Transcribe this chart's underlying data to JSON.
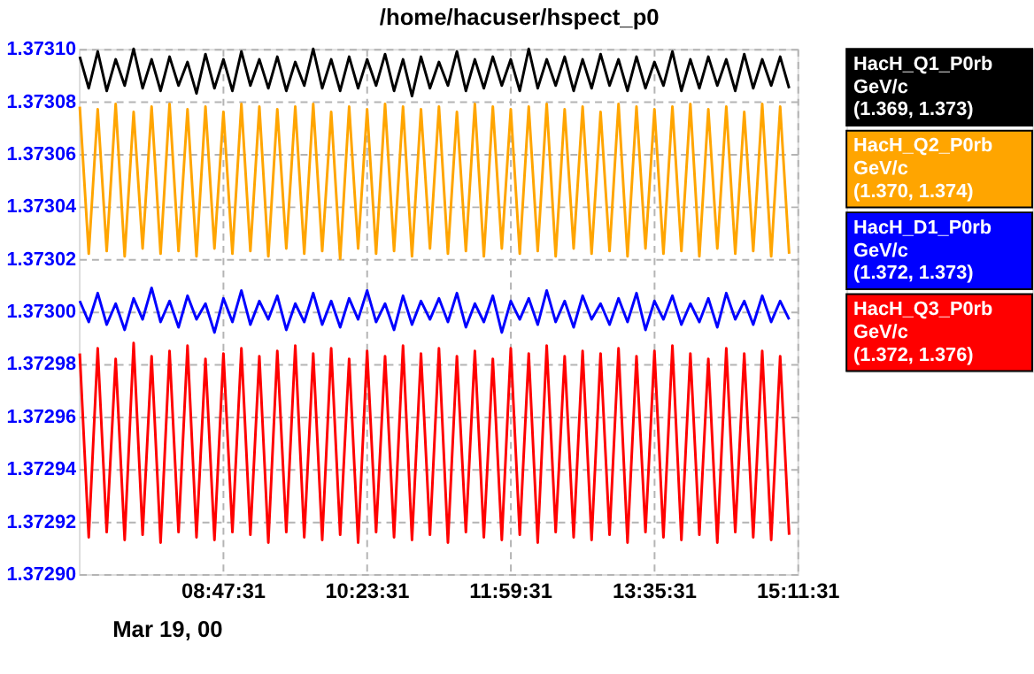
{
  "chart_data": {
    "type": "line",
    "title": "/home/hacuser/hspect_p0",
    "x": [
      7.2,
      7.3,
      7.4,
      7.5,
      7.6,
      7.7,
      7.8,
      7.9,
      8.0,
      8.1,
      8.2,
      8.3,
      8.4,
      8.5,
      8.6,
      8.7,
      8.8,
      8.9,
      9.0,
      9.1,
      9.2,
      9.3,
      9.4,
      9.5,
      9.6,
      9.7,
      9.8,
      9.9,
      10.0,
      10.1,
      10.2,
      10.3,
      10.4,
      10.5,
      10.6,
      10.7,
      10.8,
      10.9,
      11.0,
      11.1,
      11.2,
      11.3,
      11.4,
      11.5,
      11.6,
      11.7,
      11.8,
      11.9,
      12.0,
      12.1,
      12.2,
      12.3,
      12.4,
      12.5,
      12.6,
      12.7,
      12.8,
      12.9,
      13.0,
      13.1,
      13.2,
      13.3,
      13.4,
      13.5,
      13.6,
      13.7,
      13.8,
      13.9,
      14.0,
      14.1,
      14.2,
      14.3,
      14.4,
      14.5,
      14.6,
      14.7,
      14.8,
      14.9,
      15.0,
      15.1
    ],
    "series": [
      {
        "name": "HacH_Q1_P0rb\nGeV/c\n(1.369, 1.373)",
        "color": "#000000",
        "values": [
          1.373097,
          1.373085,
          1.373099,
          1.373084,
          1.373096,
          1.373086,
          1.3731,
          1.373085,
          1.373096,
          1.373084,
          1.373097,
          1.373086,
          1.373095,
          1.373083,
          1.373098,
          1.373085,
          1.373096,
          1.373084,
          1.373099,
          1.373086,
          1.373096,
          1.373085,
          1.373097,
          1.373084,
          1.373095,
          1.373086,
          1.3731,
          1.373085,
          1.373096,
          1.373084,
          1.373097,
          1.373085,
          1.373096,
          1.373086,
          1.373098,
          1.373084,
          1.373096,
          1.373082,
          1.373097,
          1.373085,
          1.373095,
          1.373086,
          1.373099,
          1.373084,
          1.373096,
          1.373085,
          1.373097,
          1.373086,
          1.373096,
          1.373084,
          1.3731,
          1.373085,
          1.373096,
          1.373086,
          1.373097,
          1.373084,
          1.373096,
          1.373085,
          1.373098,
          1.373086,
          1.373096,
          1.373084,
          1.373097,
          1.373085,
          1.373095,
          1.373086,
          1.373099,
          1.373084,
          1.373096,
          1.373085,
          1.373097,
          1.373086,
          1.373096,
          1.373084,
          1.373098,
          1.373085,
          1.373096,
          1.373086,
          1.373097,
          1.373085
        ]
      },
      {
        "name": "HacH_Q2_P0rb\nGeV/c\n(1.370, 1.374)",
        "color": "#ffa500",
        "values": [
          1.373078,
          1.373022,
          1.373077,
          1.373023,
          1.373079,
          1.373021,
          1.373076,
          1.373024,
          1.373078,
          1.373022,
          1.373079,
          1.373023,
          1.373077,
          1.373021,
          1.373078,
          1.373024,
          1.373076,
          1.373022,
          1.373079,
          1.373023,
          1.373078,
          1.373021,
          1.373077,
          1.373024,
          1.373078,
          1.373022,
          1.373079,
          1.373023,
          1.373076,
          1.37302,
          1.373078,
          1.373024,
          1.373077,
          1.373022,
          1.373079,
          1.373023,
          1.373078,
          1.373021,
          1.373077,
          1.373024,
          1.373078,
          1.373022,
          1.373076,
          1.373023,
          1.373079,
          1.373021,
          1.373078,
          1.373024,
          1.373077,
          1.373022,
          1.373078,
          1.373023,
          1.373079,
          1.373021,
          1.373077,
          1.373024,
          1.373078,
          1.373022,
          1.373076,
          1.373023,
          1.373079,
          1.373021,
          1.373078,
          1.373024,
          1.373077,
          1.373022,
          1.373078,
          1.373023,
          1.373079,
          1.373021,
          1.373077,
          1.373024,
          1.373078,
          1.373022,
          1.373076,
          1.373023,
          1.373079,
          1.373021,
          1.373078,
          1.373022
        ]
      },
      {
        "name": "HacH_D1_P0rb\nGeV/c\n(1.372, 1.373)",
        "color": "#0000ff",
        "values": [
          1.373004,
          1.372996,
          1.373007,
          1.372995,
          1.373003,
          1.372993,
          1.373005,
          1.372997,
          1.373009,
          1.372996,
          1.373004,
          1.372994,
          1.373006,
          1.372997,
          1.373003,
          1.372992,
          1.373005,
          1.372996,
          1.373008,
          1.372995,
          1.373004,
          1.372997,
          1.373006,
          1.372993,
          1.373003,
          1.372996,
          1.373007,
          1.372995,
          1.373004,
          1.372994,
          1.373005,
          1.372997,
          1.373008,
          1.372996,
          1.373003,
          1.372993,
          1.373006,
          1.372995,
          1.373004,
          1.372997,
          1.373005,
          1.372996,
          1.373007,
          1.372994,
          1.373003,
          1.372996,
          1.373006,
          1.372992,
          1.373004,
          1.372997,
          1.373005,
          1.372995,
          1.373008,
          1.372996,
          1.373004,
          1.372994,
          1.373006,
          1.372997,
          1.373003,
          1.372995,
          1.373005,
          1.372996,
          1.373007,
          1.372993,
          1.373004,
          1.372997,
          1.373006,
          1.372995,
          1.373003,
          1.372996,
          1.373005,
          1.372994,
          1.373007,
          1.372997,
          1.373004,
          1.372995,
          1.373006,
          1.372996,
          1.373004,
          1.372997
        ]
      },
      {
        "name": "HacH_Q3_P0rb\nGeV/c\n(1.372, 1.376)",
        "color": "#ff0000",
        "values": [
          1.372984,
          1.372914,
          1.372986,
          1.372916,
          1.372982,
          1.372913,
          1.372988,
          1.372915,
          1.372983,
          1.372912,
          1.372985,
          1.372916,
          1.372987,
          1.372914,
          1.372982,
          1.372913,
          1.372984,
          1.372916,
          1.372986,
          1.372915,
          1.372983,
          1.372912,
          1.372985,
          1.372916,
          1.372987,
          1.372914,
          1.372984,
          1.372913,
          1.372986,
          1.372915,
          1.372982,
          1.372912,
          1.372985,
          1.372916,
          1.372983,
          1.372914,
          1.372987,
          1.372913,
          1.372984,
          1.372915,
          1.372986,
          1.372912,
          1.372983,
          1.372916,
          1.372985,
          1.372914,
          1.372982,
          1.372913,
          1.372986,
          1.372915,
          1.372984,
          1.372912,
          1.372987,
          1.372916,
          1.372983,
          1.372914,
          1.372985,
          1.372913,
          1.372984,
          1.372915,
          1.372986,
          1.372912,
          1.372983,
          1.372916,
          1.372985,
          1.372914,
          1.372987,
          1.372913,
          1.372984,
          1.372915,
          1.372982,
          1.372912,
          1.372986,
          1.372916,
          1.372984,
          1.372914,
          1.372985,
          1.372913,
          1.372983,
          1.372915
        ]
      }
    ],
    "xlim": [
      7.19,
      15.19194
    ],
    "xticks": [
      {
        "value": 8.79194,
        "label": "08:47:31"
      },
      {
        "value": 10.39194,
        "label": "10:23:31"
      },
      {
        "value": 11.99194,
        "label": "11:59:31"
      },
      {
        "value": 13.59194,
        "label": "13:35:31"
      },
      {
        "value": 15.19194,
        "label": "15:11:31"
      }
    ],
    "ylim": [
      1.3729,
      1.3731
    ],
    "yticks": [
      {
        "value": 1.3729,
        "label": "1.37290"
      },
      {
        "value": 1.37292,
        "label": "1.37292"
      },
      {
        "value": 1.37294,
        "label": "1.37294"
      },
      {
        "value": 1.37296,
        "label": "1.37296"
      },
      {
        "value": 1.37298,
        "label": "1.37298"
      },
      {
        "value": 1.373,
        "label": "1.37300"
      },
      {
        "value": 1.37302,
        "label": "1.37302"
      },
      {
        "value": 1.37304,
        "label": "1.37304"
      },
      {
        "value": 1.37306,
        "label": "1.37306"
      },
      {
        "value": 1.37308,
        "label": "1.37308"
      },
      {
        "value": 1.3731,
        "label": "1.37310"
      }
    ],
    "annotations": [
      "Mar 19, 00"
    ],
    "grid": true,
    "legend": "top right",
    "marker": "none",
    "line_style": "solid"
  }
}
